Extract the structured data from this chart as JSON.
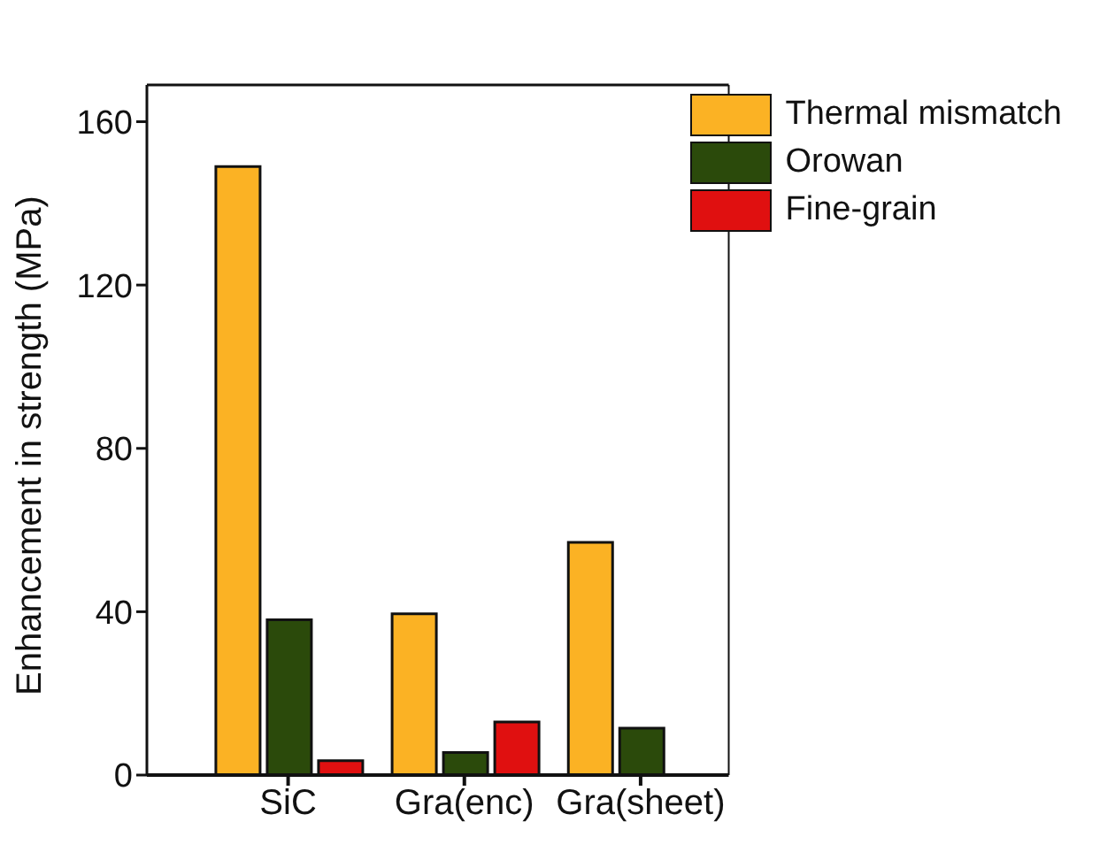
{
  "chart_data": {
    "type": "bar",
    "ylabel": "Enhancement in strength (MPa)",
    "categories": [
      "SiC",
      "Gra(enc)",
      "Gra(sheet)"
    ],
    "series": [
      {
        "name": "Thermal mismatch",
        "color": "#fbb224",
        "values": [
          149,
          39.5,
          57
        ]
      },
      {
        "name": "Orowan",
        "color": "#2b4a0b",
        "values": [
          38,
          5.5,
          11.5
        ]
      },
      {
        "name": "Fine-grain",
        "color": "#e01010",
        "values": [
          3.5,
          13,
          null
        ]
      }
    ],
    "ylim": [
      0,
      169
    ],
    "yticks": [
      0,
      40,
      80,
      120,
      160
    ],
    "grid": false,
    "legend": "top right"
  }
}
